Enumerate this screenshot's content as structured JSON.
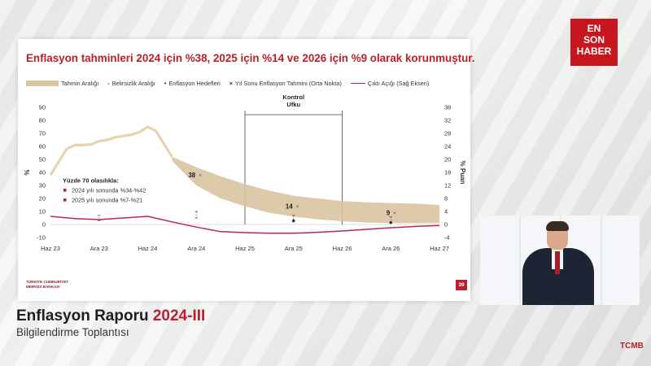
{
  "slide": {
    "title": "Enflasyon tahminleri 2024 için %38, 2025 için %14 ve 2026 için %9 olarak korunmuştur.",
    "page_number": "39",
    "logo_text_1": "TÜRKİYE CUMHURİYET",
    "logo_text_2": "MERKEZ BANKASI"
  },
  "legend": {
    "band": "Tahmin Aralığı",
    "uncertainty": "Belirsizlik Aralığı",
    "targets": "Enflasyon Hedefleri",
    "year_end": "Yıl Sonu Enflasyon Tahmini (Orta Nokta)",
    "output_gap": "Çıktı Açığı (Sağ Eksen)"
  },
  "broadcaster": {
    "line1": "EN",
    "line2": "SON",
    "line3": "HABER"
  },
  "caption": {
    "title_main": "Enflasyon Raporu",
    "title_accent": "2024-III",
    "subtitle": "Bilgilendirme Toplantısı"
  },
  "corner_logo": "TCMB",
  "colors": {
    "accent": "#b8202e",
    "band": "#d8c4a2",
    "history_line": "#e6d3b0",
    "output_gap": "#c0264a"
  },
  "chart_data": {
    "type": "line",
    "title": "",
    "x_ticks": [
      "Haz 23",
      "Ara 23",
      "Haz 24",
      "Ara 24",
      "Haz 25",
      "Ara 25",
      "Haz 26",
      "Ara 26",
      "Haz 27"
    ],
    "x_index_range": [
      0,
      48
    ],
    "ylim": [
      -10,
      90
    ],
    "y_ticks": [
      -10,
      0,
      10,
      20,
      30,
      40,
      50,
      60,
      70,
      80,
      90
    ],
    "ylabel": "%",
    "y2lim": [
      -4,
      36
    ],
    "y2_ticks": [
      -4,
      0,
      4,
      8,
      12,
      16,
      20,
      24,
      28,
      32,
      36
    ],
    "y2label": "% Puan",
    "control_horizon": {
      "label_1": "Kontrol",
      "label_2": "Ufku",
      "start": 24,
      "end": 36
    },
    "history": {
      "x": [
        0,
        1,
        2,
        3,
        4,
        5,
        6,
        7,
        8,
        9,
        10,
        11,
        12,
        13,
        14,
        15
      ],
      "y": [
        38,
        48,
        58,
        61,
        61,
        61.5,
        64,
        65,
        67,
        68,
        69,
        71,
        75,
        72,
        62,
        52
      ]
    },
    "forecast_band": {
      "x": [
        15,
        18,
        21,
        24,
        27,
        30,
        33,
        36,
        39,
        42,
        45,
        48
      ],
      "lower": [
        49,
        30,
        20,
        14,
        9,
        6,
        4,
        2.5,
        1.5,
        1,
        1,
        1
      ],
      "upper": [
        52,
        44,
        37,
        31,
        26,
        22,
        20,
        18,
        17,
        16.5,
        16,
        15
      ]
    },
    "year_end_forecasts": [
      {
        "x": 18,
        "y": 38,
        "label": "38"
      },
      {
        "x": 30,
        "y": 14,
        "label": "14"
      },
      {
        "x": 42,
        "y": 9,
        "label": "9"
      }
    ],
    "uncertainty_marks": [
      {
        "x": 6,
        "low": 3,
        "high": 7
      },
      {
        "x": 18,
        "low": 5,
        "high": 10
      },
      {
        "x": 30,
        "low": 2,
        "high": 7
      },
      {
        "x": 42,
        "low": 1,
        "high": 6
      }
    ],
    "inflation_targets": [
      {
        "x": 30,
        "y": 3
      },
      {
        "x": 42,
        "y": 1.5
      }
    ],
    "output_gap": {
      "x": [
        0,
        3,
        6,
        9,
        12,
        15,
        18,
        21,
        24,
        27,
        30,
        33,
        36,
        39,
        42,
        45,
        48
      ],
      "y": [
        2.5,
        1.8,
        1.5,
        2.0,
        2.5,
        0.8,
        -0.8,
        -2.2,
        -2.5,
        -2.7,
        -2.7,
        -2.4,
        -2.0,
        -1.5,
        -1.0,
        -0.6,
        -0.3
      ]
    },
    "probability_box": {
      "title": "Yüzde 70 olasılıkla:",
      "items": [
        "2024 yılı sonunda %34-%42",
        "2025 yılı sonunda %7-%21"
      ]
    }
  }
}
